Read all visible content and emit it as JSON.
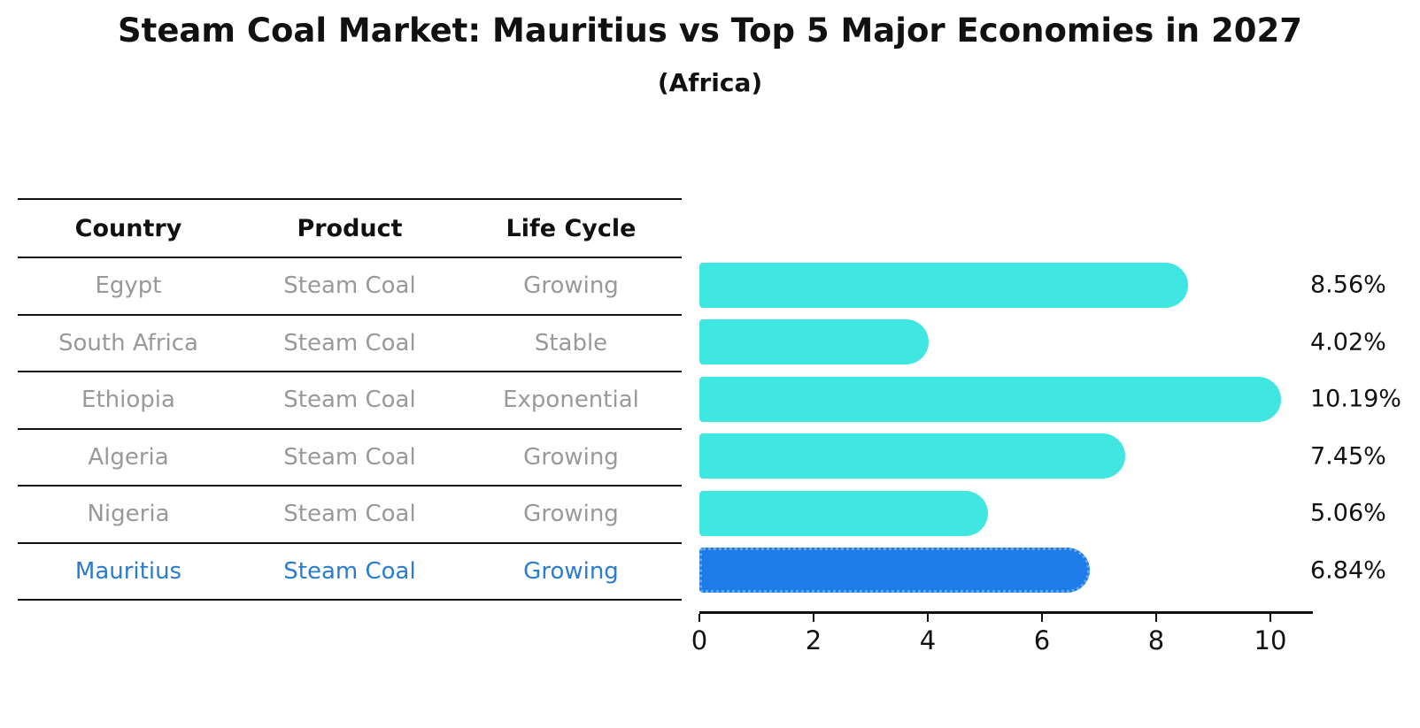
{
  "title": "Steam Coal Market: Mauritius vs Top 5 Major Economies in 2027",
  "subtitle": "(Africa)",
  "table": {
    "headers": [
      "Country",
      "Product",
      "Life Cycle"
    ],
    "rows": [
      {
        "country": "Egypt",
        "product": "Steam Coal",
        "life_cycle": "Growing",
        "highlight": false
      },
      {
        "country": "South Africa",
        "product": "Steam Coal",
        "life_cycle": "Stable",
        "highlight": false
      },
      {
        "country": "Ethiopia",
        "product": "Steam Coal",
        "life_cycle": "Exponential",
        "highlight": false
      },
      {
        "country": "Algeria",
        "product": "Steam Coal",
        "life_cycle": "Growing",
        "highlight": false
      },
      {
        "country": "Nigeria",
        "product": "Steam Coal",
        "life_cycle": "Growing",
        "highlight": false
      },
      {
        "country": "Mauritius",
        "product": "Steam Coal",
        "life_cycle": "Growing",
        "highlight": true
      }
    ]
  },
  "chart_data": {
    "type": "bar",
    "orientation": "horizontal",
    "title": "Steam Coal Market: Mauritius vs Top 5 Major Economies in 2027 (Africa)",
    "categories": [
      "Egypt",
      "South Africa",
      "Ethiopia",
      "Algeria",
      "Nigeria",
      "Mauritius"
    ],
    "values": [
      8.56,
      4.02,
      10.19,
      7.45,
      5.06,
      6.84
    ],
    "labels": [
      "8.56%",
      "4.02%",
      "10.19%",
      "7.45%",
      "5.06%",
      "6.84%"
    ],
    "xlim": [
      0,
      10.75
    ],
    "xticks": [
      0,
      2,
      4,
      6,
      8,
      10
    ],
    "grid": false,
    "legend": false,
    "highlight_index": 5
  },
  "colors": {
    "bar": "#40E6E1",
    "highlight_bar": "#1E7CE8",
    "highlight_border": "#66A8F2",
    "highlight_text": "#2B7CCE",
    "row_text": "#999999",
    "header_text": "#111111",
    "axis": "#111111"
  }
}
